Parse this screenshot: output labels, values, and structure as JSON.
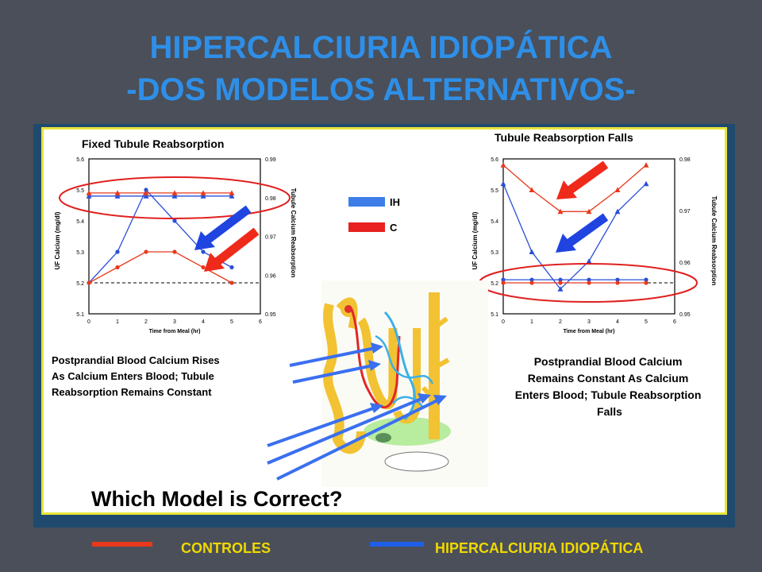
{
  "slide": {
    "title_line1": "HIPERCALCIURIA IDIOPÁTICA",
    "title_line2": "-DOS MODELOS ALTERNATIVOS-",
    "question": "Which Model is Correct?",
    "bottom_legend": {
      "controls_label": "CONTROLES",
      "ih_label": "HIPERCALCIURIA IDIOPÁTICA",
      "controls_color": "#e8391c",
      "ih_color": "#1f5fe8"
    },
    "figure_legend": {
      "ih": "IH",
      "c": "C"
    },
    "left_caption": [
      "Postprandial Blood Calcium Rises",
      "As Calcium Enters Blood; Tubule",
      "Reabsorption Remains Constant"
    ],
    "right_caption": [
      "Postprandial Blood Calcium",
      "Remains Constant As Calcium",
      "Enters Blood; Tubule Reabsorption",
      "Falls"
    ],
    "colors": {
      "title": "#2e8fe8",
      "ih_line": "#2a4fd8",
      "c_line": "#e8391c",
      "ellipse": "#e02020"
    }
  },
  "chart_data": [
    {
      "type": "line",
      "title": "Fixed Tubule Reabsorption",
      "xlabel": "Time from Meal (hr)",
      "ylabel": "UF Calcium (mg/dl)",
      "y2label": "Tubule Calcium Reabsorption",
      "x": [
        0,
        1,
        2,
        3,
        4,
        5
      ],
      "xlim": [
        0,
        6
      ],
      "ylim": [
        5.1,
        5.6
      ],
      "y_ticks": [
        "5.1",
        "5.2",
        "5.3",
        "5.4",
        "5.5",
        "5.6"
      ],
      "y2_ticks": [
        "0.95",
        "0.96",
        "0.97",
        "0.98",
        "0.99"
      ],
      "x_ticks": [
        "0",
        "1",
        "2",
        "3",
        "4",
        "5",
        "6"
      ],
      "series": [
        {
          "name": "IH",
          "kind": "uf",
          "values": [
            5.2,
            5.3,
            5.5,
            5.4,
            5.3,
            5.25
          ]
        },
        {
          "name": "C",
          "kind": "uf",
          "values": [
            5.2,
            5.25,
            5.3,
            5.3,
            5.25,
            5.2
          ]
        },
        {
          "name": "IH",
          "kind": "reabsorption",
          "values": [
            5.48,
            5.48,
            5.48,
            5.48,
            5.48,
            5.48
          ]
        },
        {
          "name": "C",
          "kind": "reabsorption",
          "values": [
            5.49,
            5.49,
            5.49,
            5.49,
            5.49,
            5.49
          ]
        }
      ],
      "reference_line": 5.2
    },
    {
      "type": "line",
      "title": "Tubule Reabsorption Falls",
      "xlabel": "Time from Meal (hr)",
      "ylabel": "UF Calcium (mg/dl)",
      "y2label": "Tubule Calcium Reabsorption",
      "x": [
        0,
        1,
        2,
        3,
        4,
        5
      ],
      "xlim": [
        0,
        6
      ],
      "ylim": [
        5.1,
        5.6
      ],
      "y_ticks": [
        "5.1",
        "5.2",
        "5.3",
        "5.4",
        "5.5",
        "5.6"
      ],
      "y2_ticks": [
        "0.95",
        "0.96",
        "0.97",
        "0.98"
      ],
      "x_ticks": [
        "0",
        "1",
        "2",
        "3",
        "4",
        "5",
        "6"
      ],
      "series": [
        {
          "name": "IH",
          "kind": "reabsorption",
          "values": [
            5.52,
            5.3,
            5.18,
            5.27,
            5.43,
            5.52
          ]
        },
        {
          "name": "C",
          "kind": "reabsorption",
          "values": [
            5.58,
            5.5,
            5.43,
            5.43,
            5.5,
            5.58
          ]
        },
        {
          "name": "IH",
          "kind": "uf",
          "values": [
            5.21,
            5.21,
            5.21,
            5.21,
            5.21,
            5.21
          ]
        },
        {
          "name": "C",
          "kind": "uf",
          "values": [
            5.2,
            5.2,
            5.2,
            5.2,
            5.2,
            5.2
          ]
        }
      ],
      "reference_line": 5.2
    }
  ]
}
